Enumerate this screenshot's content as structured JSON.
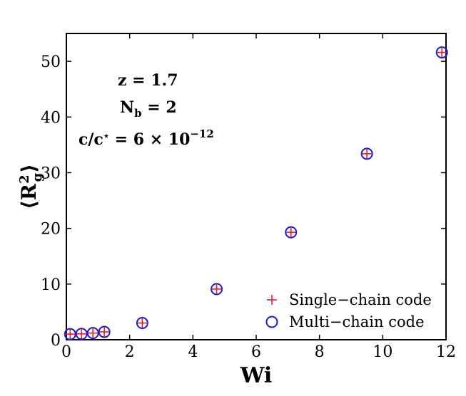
{
  "chart_data": {
    "type": "scatter",
    "xlabel": "Wi",
    "ylabel": "⟨R_g^2⟩",
    "xlim": [
      0,
      12
    ],
    "ylim": [
      0,
      55
    ],
    "xticks": [
      0,
      2,
      4,
      6,
      8,
      10,
      12
    ],
    "yticks": [
      0,
      10,
      20,
      30,
      40,
      50
    ],
    "xtick_labels": [
      "0",
      "2",
      "4",
      "6",
      "8",
      "10",
      "12"
    ],
    "ytick_labels": [
      "0",
      "10",
      "20",
      "30",
      "40",
      "50"
    ],
    "grid": false,
    "legend_position": "bottom-right",
    "annotations": [
      "z = 1.7",
      "N_b = 2",
      "c/c* = 6 × 10^−12"
    ],
    "series": [
      {
        "name": "Single−chain code",
        "marker": "plus",
        "color": "#e8192c",
        "x": [
          0.12,
          0.48,
          0.84,
          1.2,
          2.4,
          4.75,
          7.1,
          9.5,
          11.87
        ],
        "y": [
          1.0,
          1.05,
          1.2,
          1.4,
          3.0,
          9.1,
          19.3,
          33.4,
          51.6
        ]
      },
      {
        "name": "Multi−chain code",
        "marker": "circle",
        "color": "#1a1ad6",
        "x": [
          0.12,
          0.48,
          0.84,
          1.2,
          2.4,
          4.75,
          7.1,
          9.5,
          11.87
        ],
        "y": [
          1.0,
          1.05,
          1.2,
          1.4,
          3.0,
          9.1,
          19.3,
          33.4,
          51.6
        ]
      }
    ]
  }
}
